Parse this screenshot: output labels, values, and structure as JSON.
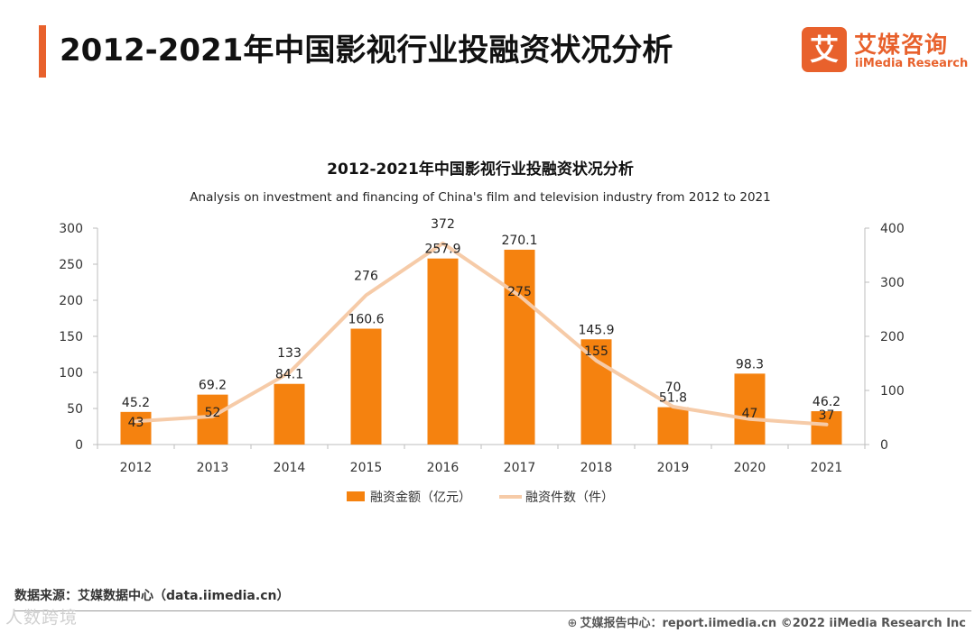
{
  "page": {
    "title": "2012-2021年中国影视行业投融资状况分析",
    "logo_mark": "艾",
    "logo_name": "艾媒咨询",
    "logo_sub": "iiMedia Research",
    "source": "数据来源：艾媒数据中心（data.iimedia.cn）",
    "footer_text": "艾媒报告中心：report.iimedia.cn  ©2022  iiMedia Research  Inc",
    "watermark": "人数跨境"
  },
  "colors": {
    "accent": "#e8612c",
    "bar": "#f5820f",
    "line": "#f6cba8"
  },
  "chart_data": {
    "type": "bar",
    "title": "2012-2021年中国影视行业投融资状况分析",
    "subtitle": "Analysis on investment and financing of China's film and television industry from 2012 to 2021",
    "categories": [
      "2012",
      "2013",
      "2014",
      "2015",
      "2016",
      "2017",
      "2018",
      "2019",
      "2020",
      "2021"
    ],
    "series": [
      {
        "name": "融资金额（亿元）",
        "type": "bar",
        "axis": "left",
        "values": [
          45.2,
          69.2,
          84.1,
          160.6,
          257.9,
          270.1,
          145.9,
          51.8,
          98.3,
          46.2
        ],
        "labels": [
          "45.2",
          "69.2",
          "84.1",
          "160.6",
          "257.9",
          "270.1",
          "145.9",
          "51.8",
          "98.3",
          "46.2"
        ]
      },
      {
        "name": "融资件数（件）",
        "type": "line",
        "axis": "right",
        "values": [
          43,
          52,
          133,
          276,
          372,
          275,
          155,
          70,
          47,
          37
        ],
        "labels": [
          "43",
          "52",
          "133",
          "276",
          "372",
          "275",
          "155",
          "70",
          "47",
          "37"
        ]
      }
    ],
    "y_left": {
      "min": 0,
      "max": 300,
      "ticks": [
        0,
        50,
        100,
        150,
        200,
        250,
        300
      ]
    },
    "y_right": {
      "min": 0,
      "max": 400,
      "ticks": [
        0,
        100,
        200,
        300,
        400
      ]
    },
    "legend": "bottom",
    "grid": false
  }
}
